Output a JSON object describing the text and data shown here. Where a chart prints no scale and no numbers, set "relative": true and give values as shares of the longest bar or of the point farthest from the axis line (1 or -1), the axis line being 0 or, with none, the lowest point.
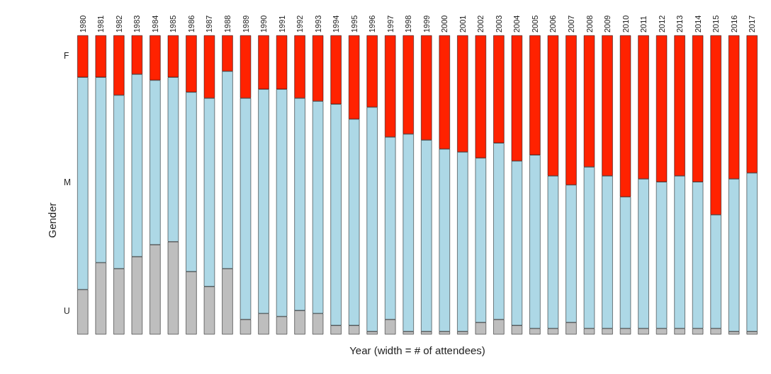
{
  "chart_data": {
    "type": "bar",
    "stacked": true,
    "relative": true,
    "xlabel": "Year (width = # of attendees)",
    "ylabel": "Gender",
    "legend": false,
    "grid": false,
    "categories": [
      "1980",
      "1981",
      "1982",
      "1983",
      "1984",
      "1985",
      "1986",
      "1987",
      "1988",
      "1989",
      "1990",
      "1991",
      "1992",
      "1993",
      "1994",
      "1995",
      "1996",
      "1997",
      "1998",
      "1999",
      "2000",
      "2001",
      "2002",
      "2003",
      "2004",
      "2005",
      "2006",
      "2007",
      "2008",
      "2009",
      "2010",
      "2011",
      "2012",
      "2013",
      "2014",
      "2015",
      "2016",
      "2017"
    ],
    "series": [
      {
        "name": "U",
        "color": "#bebebe",
        "values": [
          0.15,
          0.24,
          0.22,
          0.26,
          0.3,
          0.31,
          0.21,
          0.16,
          0.22,
          0.05,
          0.07,
          0.06,
          0.08,
          0.07,
          0.03,
          0.03,
          0.01,
          0.05,
          0.01,
          0.01,
          0.01,
          0.01,
          0.04,
          0.05,
          0.03,
          0.02,
          0.02,
          0.04,
          0.02,
          0.02,
          0.02,
          0.02,
          0.02,
          0.02,
          0.02,
          0.02,
          0.01,
          0.01
        ]
      },
      {
        "name": "M",
        "color": "#add8e6",
        "values": [
          0.71,
          0.62,
          0.58,
          0.61,
          0.55,
          0.55,
          0.6,
          0.63,
          0.66,
          0.74,
          0.75,
          0.76,
          0.71,
          0.71,
          0.74,
          0.69,
          0.75,
          0.61,
          0.66,
          0.64,
          0.61,
          0.6,
          0.55,
          0.59,
          0.55,
          0.58,
          0.51,
          0.46,
          0.54,
          0.51,
          0.44,
          0.5,
          0.49,
          0.51,
          0.49,
          0.38,
          0.51,
          0.53
        ]
      },
      {
        "name": "F",
        "color": "#ff2200",
        "values": [
          0.14,
          0.14,
          0.2,
          0.13,
          0.15,
          0.14,
          0.19,
          0.21,
          0.12,
          0.21,
          0.18,
          0.18,
          0.21,
          0.22,
          0.23,
          0.28,
          0.24,
          0.34,
          0.33,
          0.35,
          0.38,
          0.39,
          0.41,
          0.36,
          0.42,
          0.4,
          0.47,
          0.5,
          0.44,
          0.47,
          0.54,
          0.48,
          0.49,
          0.47,
          0.49,
          0.6,
          0.48,
          0.46
        ]
      }
    ]
  }
}
